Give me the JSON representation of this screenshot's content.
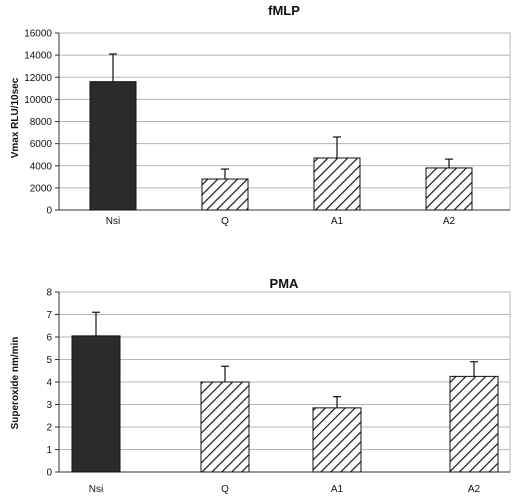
{
  "chart_data": [
    {
      "type": "bar",
      "title": "fMLP",
      "ylabel": "Vmax RLU/10sec",
      "xlabel": "",
      "categories": [
        "Nsi",
        "Q",
        "A1",
        "A2"
      ],
      "values": [
        11600,
        2800,
        4700,
        3800
      ],
      "errors": [
        2500,
        900,
        1900,
        800
      ],
      "ylim": [
        0,
        16000
      ],
      "yticks": [
        0,
        2000,
        4000,
        6000,
        8000,
        10000,
        12000,
        14000,
        16000
      ],
      "ytick_labels": [
        "0",
        "2000",
        "4000",
        "6000",
        "8000",
        "10000",
        "12000",
        "14000",
        "16000"
      ],
      "grid": true,
      "bar_styles": [
        "solid",
        "hatched",
        "hatched",
        "hatched"
      ]
    },
    {
      "type": "bar",
      "title": "PMA",
      "ylabel": "Superoxide nm/min",
      "xlabel": "",
      "categories": [
        "Nsi",
        "Q",
        "A1",
        "A2"
      ],
      "values": [
        6.05,
        4.0,
        2.85,
        4.25
      ],
      "errors": [
        1.05,
        0.7,
        0.5,
        0.65
      ],
      "ylim": [
        0,
        8
      ],
      "yticks": [
        0,
        1,
        2,
        3,
        4,
        5,
        6,
        7,
        8
      ],
      "ytick_labels": [
        "0",
        "1",
        "2",
        "3",
        "4",
        "5",
        "6",
        "7",
        "8"
      ],
      "grid": true,
      "bar_styles": [
        "solid",
        "hatched",
        "hatched",
        "hatched"
      ]
    }
  ],
  "colors": {
    "solid_bar": "#2b2b2b",
    "hatch": "#1a1a1a",
    "grid": "#b5b5b5",
    "axis": "#333333"
  }
}
